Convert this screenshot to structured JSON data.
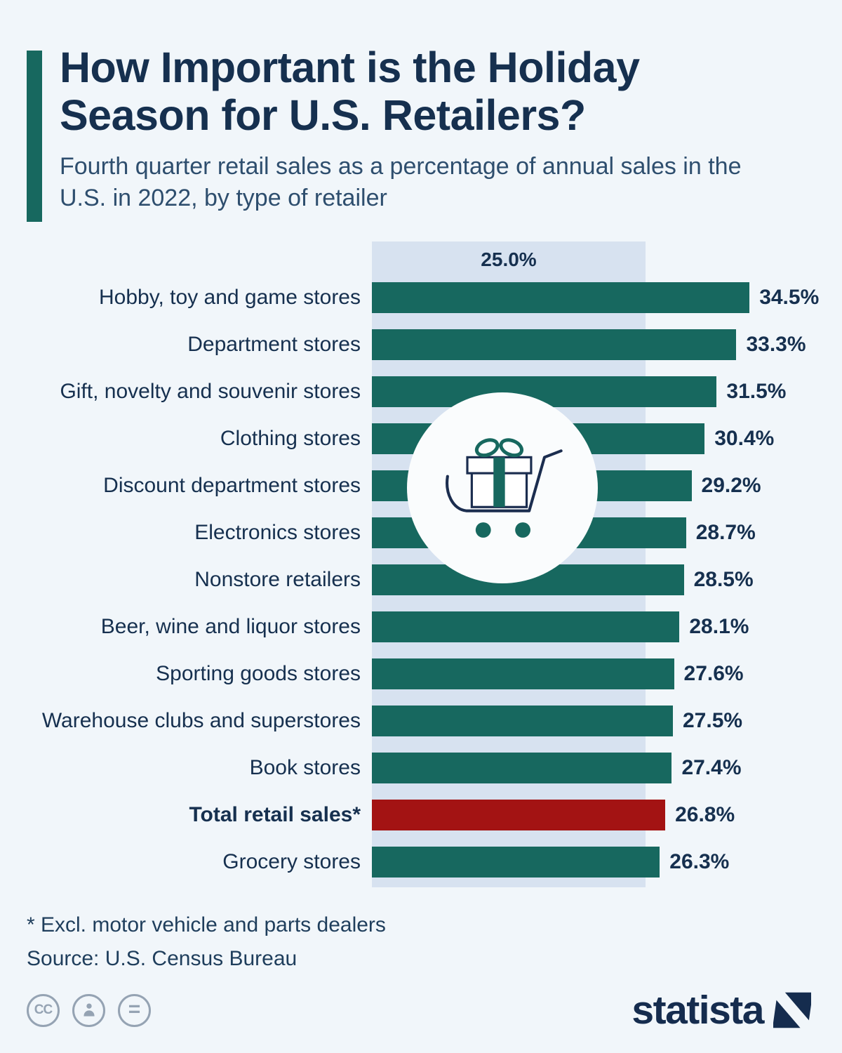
{
  "colors": {
    "bar": "#17685f",
    "highlight_bar": "#a31313",
    "reference_band": "#d7e2f0",
    "background": "#f1f6fa",
    "title": "#16304f",
    "accent_bar": "#17685f"
  },
  "header": {
    "title": "How Important is the Holiday Season for U.S. Retailers?",
    "subtitle": "Fourth quarter retail sales as a percentage of annual sales in the U.S. in 2022, by type of retailer"
  },
  "chart_data": {
    "type": "bar",
    "orientation": "horizontal",
    "title": "How Important is the Holiday Season for U.S. Retailers?",
    "subtitle": "Fourth quarter retail sales as a percentage of annual sales in the U.S. in 2022, by type of retailer",
    "unit": "%",
    "xlim": [
      0,
      35.5
    ],
    "grid": false,
    "legend": false,
    "reference_band": {
      "value": 25.0,
      "label": "25.0%"
    },
    "categories": [
      "Hobby, toy and game stores",
      "Department stores",
      "Gift, novelty and souvenir stores",
      "Clothing stores",
      "Discount department stores",
      "Electronics stores",
      "Nonstore retailers",
      "Beer, wine and liquor stores",
      "Sporting goods stores",
      "Warehouse clubs and superstores",
      "Book stores",
      "Total retail sales*",
      "Grocery stores"
    ],
    "values": [
      34.5,
      33.3,
      31.5,
      30.4,
      29.2,
      28.7,
      28.5,
      28.1,
      27.6,
      27.5,
      27.4,
      26.8,
      26.3
    ],
    "highlight_index": 11,
    "highlight_category": "Total retail sales*"
  },
  "footer": {
    "footnote": "* Excl. motor vehicle and parts dealers",
    "source": "Source: U.S. Census Bureau"
  },
  "branding": {
    "logo_text": "statista",
    "cc_label": "CC",
    "equals_label": "="
  }
}
